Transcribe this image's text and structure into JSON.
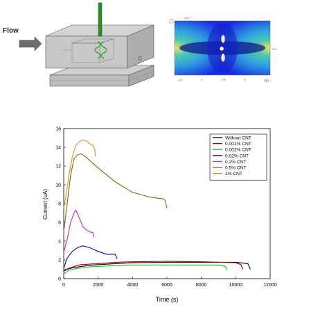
{
  "figure_top": {
    "flow_label": "Flow",
    "sim_axis_top": "×10⁻³",
    "sim_axis_right": "×10",
    "sim_axis_bottom": "×10⁻³",
    "sim_ticks_x": [
      "-1.5",
      "-1",
      "-0.5",
      "0",
      "0.5"
    ],
    "colors": {
      "apparatus": "#9a9a9a",
      "needle": "#2e8b2e",
      "arrow": "#6e6e6e"
    }
  },
  "chart_data": {
    "type": "line",
    "xlabel": "Time (s)",
    "ylabel": "Current (uA)",
    "xlim": [
      0,
      12000
    ],
    "ylim": [
      0,
      16
    ],
    "xticks": [
      0,
      2000,
      4000,
      6000,
      8000,
      10000,
      12000
    ],
    "yticks": [
      0,
      2,
      4,
      6,
      8,
      10,
      12,
      14,
      16
    ],
    "grid": false,
    "legend_position": "top-right",
    "series": [
      {
        "name": "Without CNT",
        "color": "#000000",
        "x": [
          0,
          200,
          500,
          1000,
          2000,
          3000,
          4000,
          6000,
          8000,
          10000,
          10700,
          10850
        ],
        "y": [
          0.8,
          1.0,
          1.15,
          1.3,
          1.5,
          1.6,
          1.7,
          1.75,
          1.75,
          1.75,
          1.6,
          1.0
        ]
      },
      {
        "name": "0.001% CNT",
        "color": "#b00000",
        "x": [
          0,
          300,
          700,
          1000,
          2000,
          3000,
          4000,
          6000,
          8000,
          10000,
          10300,
          10400
        ],
        "y": [
          0.9,
          1.1,
          1.35,
          1.5,
          1.6,
          1.75,
          1.8,
          1.85,
          1.8,
          1.7,
          1.5,
          1.0
        ]
      },
      {
        "name": "0.002% CNT",
        "color": "#22bb22",
        "x": [
          0,
          300,
          800,
          1500,
          2500,
          4000,
          6000,
          8000,
          9000,
          9400,
          9500
        ],
        "y": [
          0.5,
          0.9,
          1.1,
          1.25,
          1.35,
          1.45,
          1.45,
          1.45,
          1.45,
          1.3,
          0.9
        ]
      },
      {
        "name": "0.02% CNT",
        "color": "#0a0aaa",
        "x": [
          0,
          200,
          500,
          800,
          1100,
          1500,
          2000,
          2500,
          3000,
          3100
        ],
        "y": [
          1.1,
          2.2,
          2.9,
          3.3,
          3.5,
          3.3,
          2.9,
          2.6,
          2.6,
          2.1
        ]
      },
      {
        "name": "0.2% CNT",
        "color": "#d020c0",
        "x": [
          0,
          200,
          400,
          600,
          700,
          900,
          1100,
          1300,
          1500,
          1700,
          1750
        ],
        "y": [
          2.8,
          4.2,
          6.0,
          7.0,
          7.3,
          6.5,
          5.6,
          5.2,
          5.0,
          4.9,
          4.4
        ]
      },
      {
        "name": "0.5% CNT",
        "color": "#707010",
        "x": [
          0,
          200,
          400,
          600,
          800,
          1000,
          1200,
          2000,
          3000,
          4000,
          5000,
          5800,
          5900,
          6000
        ],
        "y": [
          5.0,
          8.0,
          11.0,
          12.8,
          13.2,
          13.3,
          13.1,
          11.8,
          10.3,
          9.2,
          8.7,
          8.5,
          8.3,
          7.5
        ]
      },
      {
        "name": "1% CNT",
        "color": "#e09020",
        "x": [
          0,
          150,
          300,
          500,
          700,
          900,
          1100,
          1300,
          1500,
          1700,
          1800,
          1850
        ],
        "y": [
          7.5,
          9.0,
          11.0,
          13.0,
          14.2,
          14.6,
          14.8,
          14.7,
          14.4,
          14.2,
          13.8,
          13.0
        ]
      }
    ]
  }
}
